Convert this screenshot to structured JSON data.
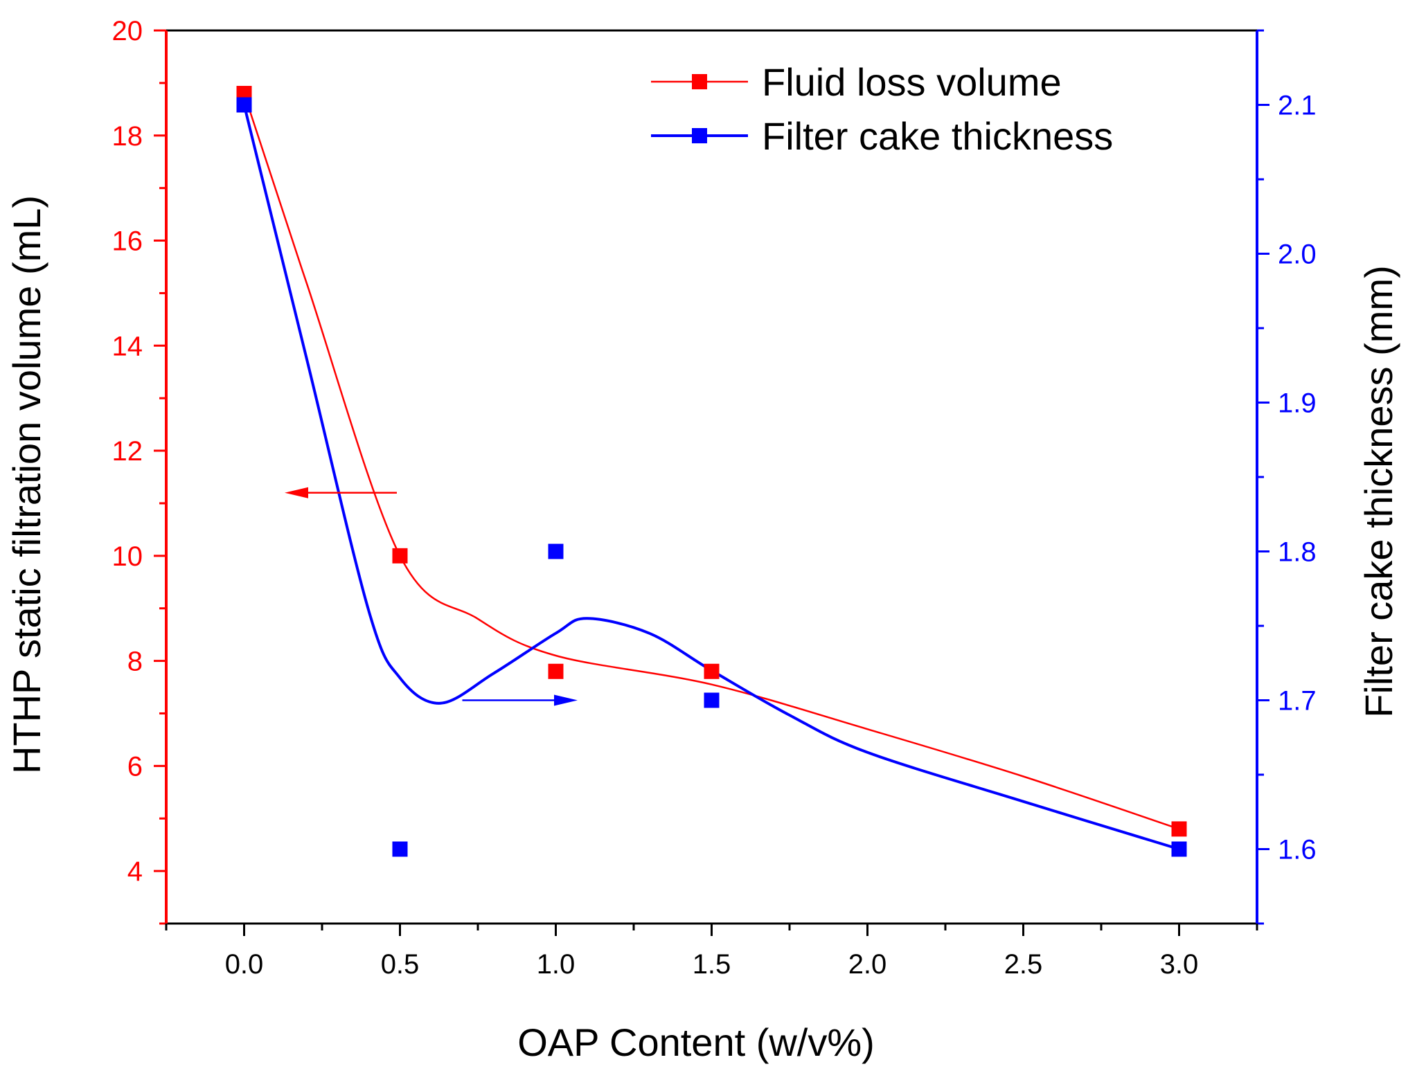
{
  "chart_data": {
    "type": "line",
    "x": [
      0.0,
      0.5,
      1.0,
      1.5,
      3.0
    ],
    "xlabel": "OAP Content (w/v%)",
    "xlim": [
      -0.25,
      3.25
    ],
    "xticks": [
      0.0,
      0.5,
      1.0,
      1.5,
      2.0,
      2.5,
      3.0
    ],
    "xtick_labels": [
      "0.0",
      "0.5",
      "1.0",
      "1.5",
      "2.0",
      "2.5",
      "3.0"
    ],
    "y_left": {
      "label": "HTHP static filtration volume (mL)",
      "lim": [
        3,
        20
      ],
      "ticks": [
        4,
        6,
        8,
        10,
        12,
        14,
        16,
        18,
        20
      ],
      "tick_labels": [
        "4",
        "6",
        "8",
        "10",
        "12",
        "14",
        "16",
        "18",
        "20"
      ],
      "color": "#ff0000"
    },
    "y_right": {
      "label": "Filter cake thickness (mm)",
      "lim": [
        1.55,
        2.15
      ],
      "ticks": [
        1.6,
        1.7,
        1.8,
        1.9,
        2.0,
        2.1
      ],
      "tick_labels": [
        "1.6",
        "1.7",
        "1.8",
        "1.9",
        "2.0",
        "2.1"
      ],
      "color": "#0000ff"
    },
    "series": [
      {
        "name": "Fluid loss volume",
        "axis": "left",
        "color": "#ff0000",
        "values": [
          18.8,
          10.0,
          7.8,
          7.8,
          4.8
        ],
        "fit_curve": [
          [
            0.0,
            18.8
          ],
          [
            0.2,
            15.2
          ],
          [
            0.5,
            10.0
          ],
          [
            0.75,
            8.8
          ],
          [
            1.0,
            8.1
          ],
          [
            1.5,
            7.55
          ],
          [
            2.0,
            6.7
          ],
          [
            2.5,
            5.8
          ],
          [
            3.0,
            4.8
          ]
        ]
      },
      {
        "name": "Filter cake thickness",
        "axis": "right",
        "color": "#0000ff",
        "values": [
          2.1,
          1.6,
          1.8,
          1.7,
          1.6
        ],
        "fit_curve": [
          [
            0.0,
            2.1
          ],
          [
            0.2,
            1.93
          ],
          [
            0.4,
            1.76
          ],
          [
            0.5,
            1.715
          ],
          [
            0.63,
            1.698
          ],
          [
            0.8,
            1.718
          ],
          [
            1.0,
            1.745
          ],
          [
            1.1,
            1.755
          ],
          [
            1.3,
            1.745
          ],
          [
            1.5,
            1.72
          ],
          [
            1.75,
            1.69
          ],
          [
            2.0,
            1.665
          ],
          [
            2.5,
            1.632
          ],
          [
            3.0,
            1.6
          ]
        ]
      }
    ],
    "annotations": [
      {
        "type": "arrow",
        "points_to": "left axis",
        "color": "#ff0000",
        "from": [
          0.49,
          11.2
        ],
        "to": [
          0.13,
          11.2
        ]
      },
      {
        "type": "arrow",
        "points_to": "right axis",
        "color": "#0000ff",
        "from": [
          0.7,
          1.7
        ],
        "to": [
          1.07,
          1.7
        ]
      }
    ],
    "legend_position": "top-right",
    "grid": false
  }
}
